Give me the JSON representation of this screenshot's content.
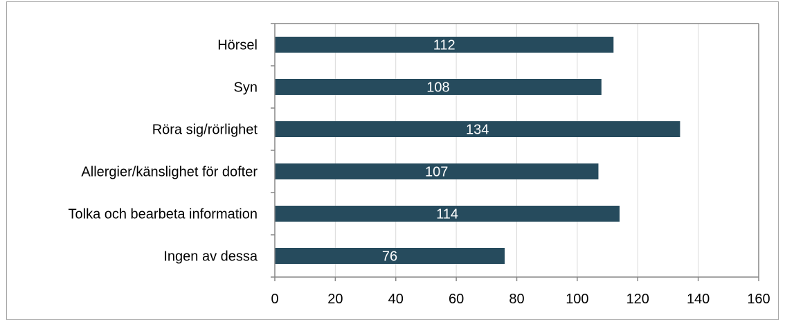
{
  "chart_data": {
    "type": "bar",
    "orientation": "horizontal",
    "categories": [
      "Hörsel",
      "Syn",
      "Röra sig/rörlighet",
      "Allergier/känslighet för dofter",
      "Tolka och bearbeta information",
      "Ingen av dessa"
    ],
    "values": [
      112,
      108,
      134,
      107,
      114,
      76
    ],
    "data_labels": [
      "112",
      "108",
      "134",
      "107",
      "114",
      "76"
    ],
    "title": "",
    "xlabel": "",
    "ylabel": "",
    "xlim": [
      0,
      160
    ],
    "x_ticks": [
      0,
      20,
      40,
      60,
      80,
      100,
      120,
      140,
      160
    ],
    "grid": true,
    "legend": "none",
    "bar_color": "#264b5d",
    "grid_color": "#d9d9d9",
    "axis_color": "#868686"
  }
}
